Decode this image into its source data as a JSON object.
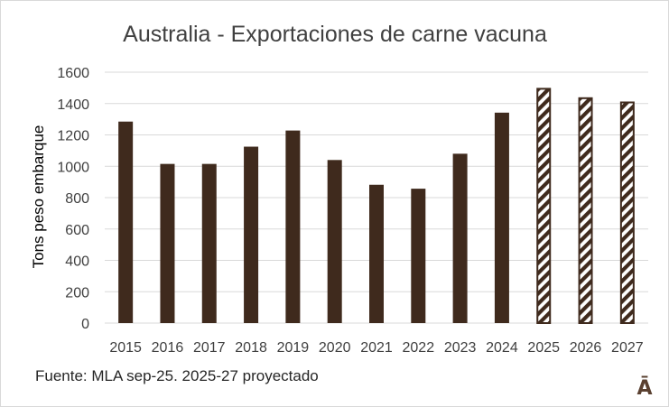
{
  "chart_data": {
    "type": "bar",
    "title": "Australia - Exportaciones de carne vacuna",
    "xlabel": "",
    "ylabel": "Tons peso embarque",
    "categories": [
      "2015",
      "2016",
      "2017",
      "2018",
      "2019",
      "2020",
      "2021",
      "2022",
      "2023",
      "2024",
      "2025",
      "2026",
      "2027"
    ],
    "values": [
      1285,
      1015,
      1015,
      1125,
      1228,
      1040,
      882,
      857,
      1080,
      1342,
      1500,
      1440,
      1413
    ],
    "projected": [
      false,
      false,
      false,
      false,
      false,
      false,
      false,
      false,
      false,
      false,
      true,
      true,
      true
    ],
    "ylim": [
      0,
      1600
    ],
    "yticks": [
      0,
      200,
      400,
      600,
      800,
      1000,
      1200,
      1400,
      1600
    ],
    "grid": true,
    "legend": "none",
    "colors": {
      "bar": "#3f2a1d",
      "hatch": "#3f2a1d",
      "grid": "#d9d9d9",
      "text": "#404040"
    }
  },
  "footer": {
    "source": "Fuente: MLA sep-25. 2025-27 proyectado",
    "logo": "Ā"
  }
}
